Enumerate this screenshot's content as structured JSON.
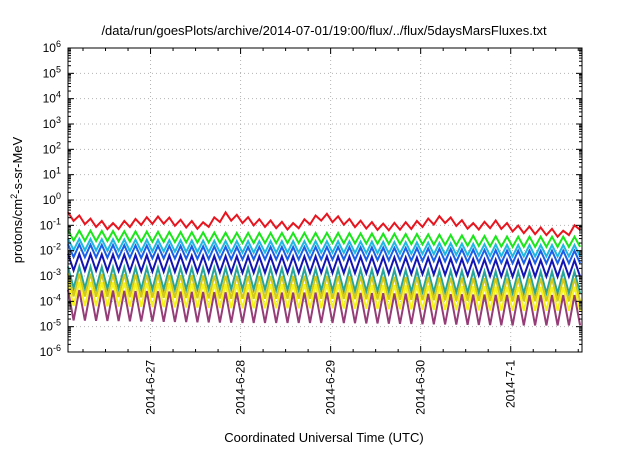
{
  "chart_data": {
    "type": "line",
    "title": "/data/run/goesPlots/archive/2014-07-01/19:00/flux/../flux/5daysMarsFluxes.txt",
    "xlabel": "Coordinated Universal Time (UTC)",
    "ylabel": {
      "prefix": "protons/cm",
      "sup": "2",
      "suffix": "-s-sr-MeV"
    },
    "y_scale": "log",
    "ylim_exponents": [
      -6,
      6
    ],
    "y_tick_labels": [
      {
        "base": "10",
        "exp": "6"
      },
      {
        "base": "10",
        "exp": "5"
      },
      {
        "base": "10",
        "exp": "4"
      },
      {
        "base": "10",
        "exp": "3"
      },
      {
        "base": "10",
        "exp": "2"
      },
      {
        "base": "10",
        "exp": "1"
      },
      {
        "base": "10",
        "exp": "0"
      },
      {
        "base": "10",
        "exp": "-1"
      },
      {
        "base": "10",
        "exp": "-2"
      },
      {
        "base": "10",
        "exp": "-3"
      },
      {
        "base": "10",
        "exp": "-4"
      },
      {
        "base": "10",
        "exp": "-5"
      },
      {
        "base": "10",
        "exp": "-6"
      }
    ],
    "xlim": [
      "2014-06-26 02:00",
      "2014-07-01 19:00"
    ],
    "x_ticks": [
      {
        "label": "2014-6-27",
        "t": "2014-06-27 00:00"
      },
      {
        "label": "2014-6-28",
        "t": "2014-06-28 00:00"
      },
      {
        "label": "2014-6-29",
        "t": "2014-06-29 00:00"
      },
      {
        "label": "2014-6-30",
        "t": "2014-06-30 00:00"
      },
      {
        "label": "2014-7-1",
        "t": "2014-07-01 00:00"
      }
    ],
    "grid": true,
    "oscillation_period_hours": 3,
    "series": [
      {
        "color": "#e8141e",
        "log_points": [
          [
            "2014-06-26 02:00",
            -0.62
          ],
          [
            "2014-06-26 08:00",
            -0.88
          ],
          [
            "2014-06-26 14:00",
            -1.05
          ],
          [
            "2014-06-26 22:00",
            -0.83
          ],
          [
            "2014-06-27 03:00",
            -0.78
          ],
          [
            "2014-06-27 08:00",
            -0.92
          ],
          [
            "2014-06-27 14:00",
            -1.02
          ],
          [
            "2014-06-27 20:00",
            -0.63
          ],
          [
            "2014-06-28 04:00",
            -0.88
          ],
          [
            "2014-06-28 14:00",
            -1.05
          ],
          [
            "2014-06-28 22:00",
            -0.65
          ],
          [
            "2014-06-29 06:00",
            -0.92
          ],
          [
            "2014-06-29 14:00",
            -1.07
          ],
          [
            "2014-06-29 22:00",
            -1.0
          ],
          [
            "2014-06-30 06:00",
            -0.75
          ],
          [
            "2014-06-30 14:00",
            -1.05
          ],
          [
            "2014-06-30 20:00",
            -0.95
          ],
          [
            "2014-07-01 02:00",
            -1.15
          ],
          [
            "2014-07-01 10:00",
            -1.25
          ],
          [
            "2014-07-01 14:00",
            -1.35
          ],
          [
            "2014-07-01 19:00",
            -1.0
          ]
        ],
        "amplitude": 0.28
      },
      {
        "color": "#1ae61a",
        "log_points": [
          [
            "2014-06-26 02:00",
            -1.4
          ],
          [
            "2014-06-27 00:00",
            -1.45
          ],
          [
            "2014-06-28 00:00",
            -1.5
          ],
          [
            "2014-06-29 00:00",
            -1.5
          ],
          [
            "2014-06-30 00:00",
            -1.55
          ],
          [
            "2014-07-01 00:00",
            -1.65
          ],
          [
            "2014-07-01 19:00",
            -1.65
          ]
        ],
        "amplitude": 0.4
      },
      {
        "color": "#1fb8e0",
        "log_points": [
          [
            "2014-06-26 02:00",
            -1.75
          ],
          [
            "2014-06-27 00:00",
            -1.8
          ],
          [
            "2014-06-28 00:00",
            -1.85
          ],
          [
            "2014-06-29 00:00",
            -1.85
          ],
          [
            "2014-06-30 00:00",
            -1.9
          ],
          [
            "2014-07-01 00:00",
            -2.0
          ],
          [
            "2014-07-01 19:00",
            -2.0
          ]
        ],
        "amplitude": 0.45
      },
      {
        "color": "#1a5fe8",
        "log_points": [
          [
            "2014-06-26 02:00",
            -2.0
          ],
          [
            "2014-06-27 00:00",
            -2.05
          ],
          [
            "2014-06-28 00:00",
            -2.1
          ],
          [
            "2014-06-29 00:00",
            -2.1
          ],
          [
            "2014-06-30 00:00",
            -2.15
          ],
          [
            "2014-07-01 00:00",
            -2.25
          ],
          [
            "2014-07-01 19:00",
            -2.25
          ]
        ],
        "amplitude": 0.5
      },
      {
        "color": "#1414b4",
        "log_points": [
          [
            "2014-06-26 02:00",
            -2.45
          ],
          [
            "2014-06-27 00:00",
            -2.5
          ],
          [
            "2014-06-28 00:00",
            -2.55
          ],
          [
            "2014-06-29 00:00",
            -2.55
          ],
          [
            "2014-06-30 00:00",
            -2.6
          ],
          [
            "2014-07-01 00:00",
            -2.7
          ],
          [
            "2014-07-01 19:00",
            -2.7
          ]
        ],
        "amplitude": 0.65
      },
      {
        "color": "#26a69a",
        "log_points": [
          [
            "2014-06-26 02:00",
            -3.05
          ],
          [
            "2014-06-27 00:00",
            -3.1
          ],
          [
            "2014-06-28 00:00",
            -3.1
          ],
          [
            "2014-06-29 00:00",
            -3.15
          ],
          [
            "2014-06-30 00:00",
            -3.2
          ],
          [
            "2014-07-01 00:00",
            -3.25
          ],
          [
            "2014-07-01 19:00",
            -3.25
          ]
        ],
        "amplitude": 0.85
      },
      {
        "color": "#d4c81a",
        "log_points": [
          [
            "2014-06-26 02:00",
            -3.35
          ],
          [
            "2014-06-27 00:00",
            -3.4
          ],
          [
            "2014-06-28 00:00",
            -3.45
          ],
          [
            "2014-06-29 00:00",
            -3.45
          ],
          [
            "2014-06-30 00:00",
            -3.5
          ],
          [
            "2014-07-01 00:00",
            -3.55
          ],
          [
            "2014-07-01 19:00",
            -3.55
          ]
        ],
        "amplitude": 0.9
      },
      {
        "color": "#f4f418",
        "log_points": [
          [
            "2014-06-26 02:00",
            -3.7
          ],
          [
            "2014-06-27 00:00",
            -3.75
          ],
          [
            "2014-06-28 00:00",
            -3.8
          ],
          [
            "2014-06-29 00:00",
            -3.8
          ],
          [
            "2014-06-30 00:00",
            -3.85
          ],
          [
            "2014-07-01 00:00",
            -3.9
          ],
          [
            "2014-07-01 19:00",
            -3.9
          ]
        ],
        "amplitude": 0.95
      },
      {
        "color": "#963c78",
        "log_points": [
          [
            "2014-06-26 02:00",
            -4.15
          ],
          [
            "2014-06-27 00:00",
            -4.2
          ],
          [
            "2014-06-28 00:00",
            -4.25
          ],
          [
            "2014-06-29 00:00",
            -4.25
          ],
          [
            "2014-06-30 00:00",
            -4.3
          ],
          [
            "2014-07-01 00:00",
            -4.35
          ],
          [
            "2014-07-01 19:00",
            -4.35
          ]
        ],
        "amplitude": 1.2
      }
    ]
  }
}
